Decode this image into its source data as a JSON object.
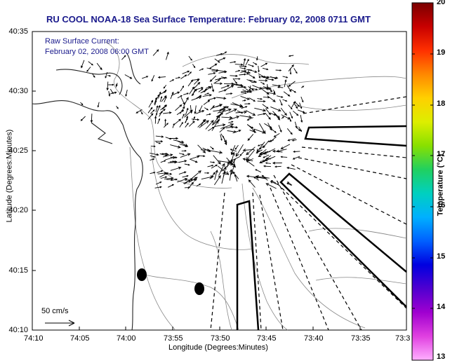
{
  "title": "RU COOL  NOAA-18  Sea Surface Temperature:  February 02, 2008 0711 GMT",
  "legend": {
    "line1": "Raw Surface Current:",
    "line2": "February 02, 2008 06:00 GMT"
  },
  "axes": {
    "xlabel": "Longitude (Degrees:Minutes)",
    "ylabel": "Latitude (Degrees:Minutes)",
    "xticks": [
      "74:10",
      "74:05",
      "74:00",
      "73:55",
      "73:50",
      "73:45",
      "73:40",
      "73:35",
      "73:3"
    ],
    "yticks": [
      "40:35",
      "40:30",
      "40:25",
      "40:20",
      "40:15",
      "40:10"
    ]
  },
  "colorbar": {
    "label": "Temperature (°C)",
    "ticks": [
      "20",
      "19",
      "18",
      "17",
      "16",
      "15",
      "14",
      "13"
    ],
    "colors": [
      "#7a0000",
      "#c80000",
      "#ff3000",
      "#ff8800",
      "#ffd000",
      "#ddee00",
      "#88e000",
      "#20d060",
      "#00d0c0",
      "#00b0ff",
      "#0060ff",
      "#0000e0",
      "#5000d0",
      "#a000d0",
      "#e040e0",
      "#ffb0ff"
    ]
  },
  "scale": {
    "label": "50 cm/s"
  },
  "colors": {
    "title": "#1a1a8c",
    "lines": "#000000",
    "bathymetry": "#555555"
  }
}
